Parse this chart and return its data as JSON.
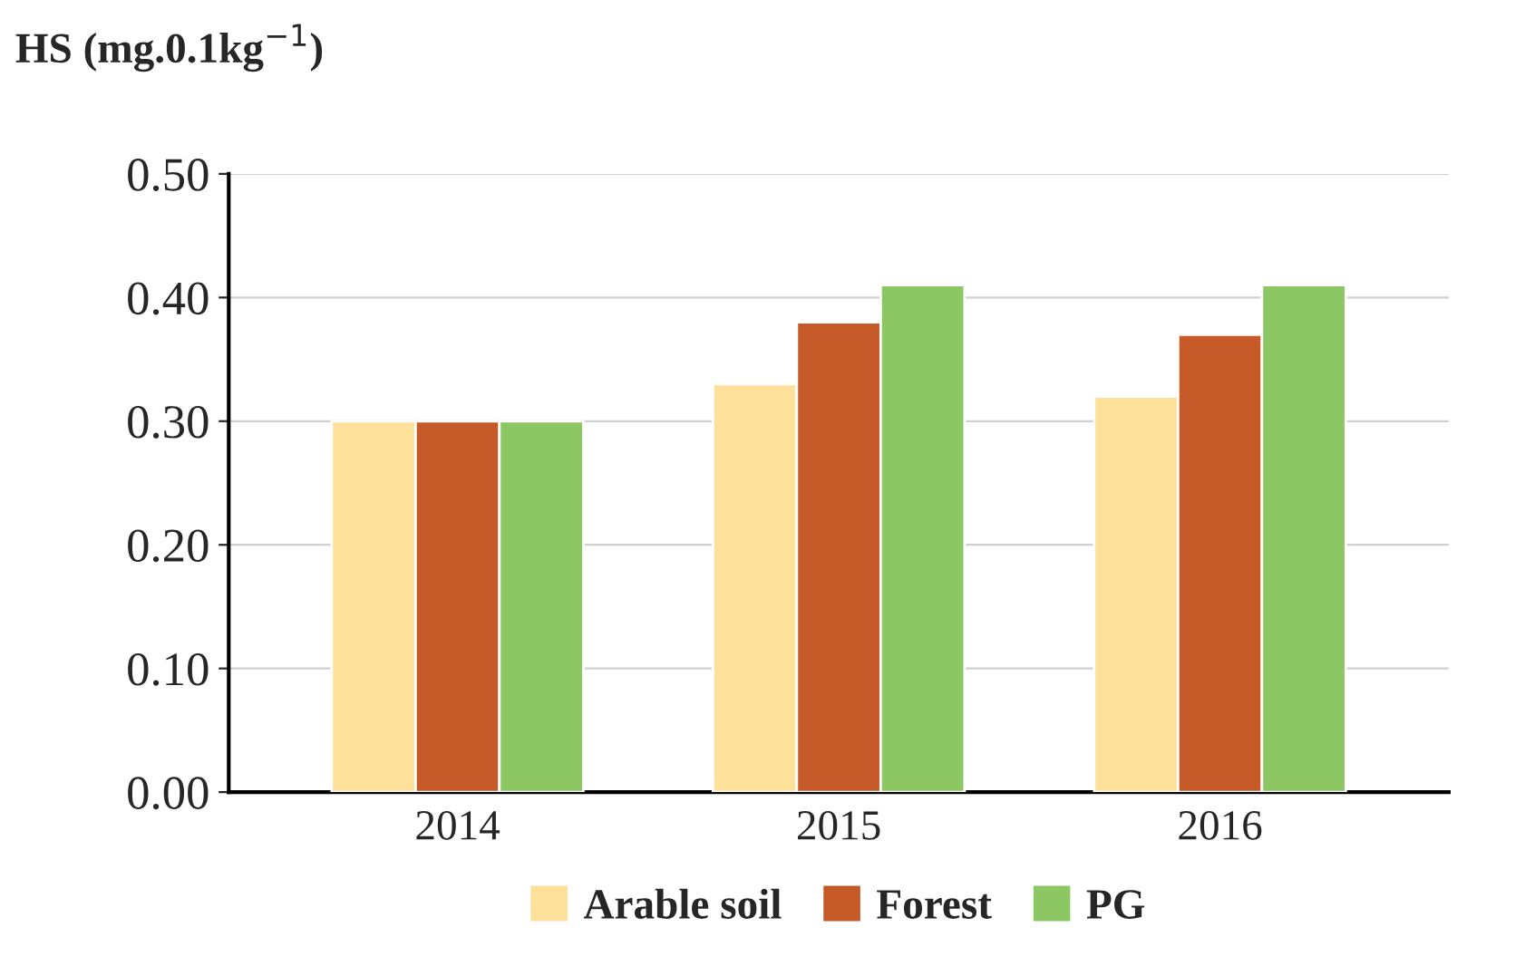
{
  "chart_data": {
    "type": "bar",
    "ylabel": "HS (mg.0.1kg$^{−1}$)",
    "categories": [
      "2014",
      "2015",
      "2016"
    ],
    "series": [
      {
        "name": "Arable soil",
        "color": "#fde09a",
        "values": [
          0.3,
          0.33,
          0.32
        ]
      },
      {
        "name": "Forest",
        "color": "#c55a28",
        "values": [
          0.3,
          0.38,
          0.37
        ]
      },
      {
        "name": "PG",
        "color": "#8cc763",
        "values": [
          0.3,
          0.41,
          0.41
        ]
      }
    ],
    "ylim": [
      0,
      0.5
    ],
    "yticks": [
      {
        "value": 0,
        "label": "0.00"
      },
      {
        "value": 0.1,
        "label": "0.10"
      },
      {
        "value": 0.2,
        "label": "0.20"
      },
      {
        "value": 0.3,
        "label": "0.30"
      },
      {
        "value": 0.4,
        "label": "0.40"
      },
      {
        "value": 0.5,
        "label": "0.50"
      }
    ],
    "grid": "y",
    "legend": "bottom"
  }
}
